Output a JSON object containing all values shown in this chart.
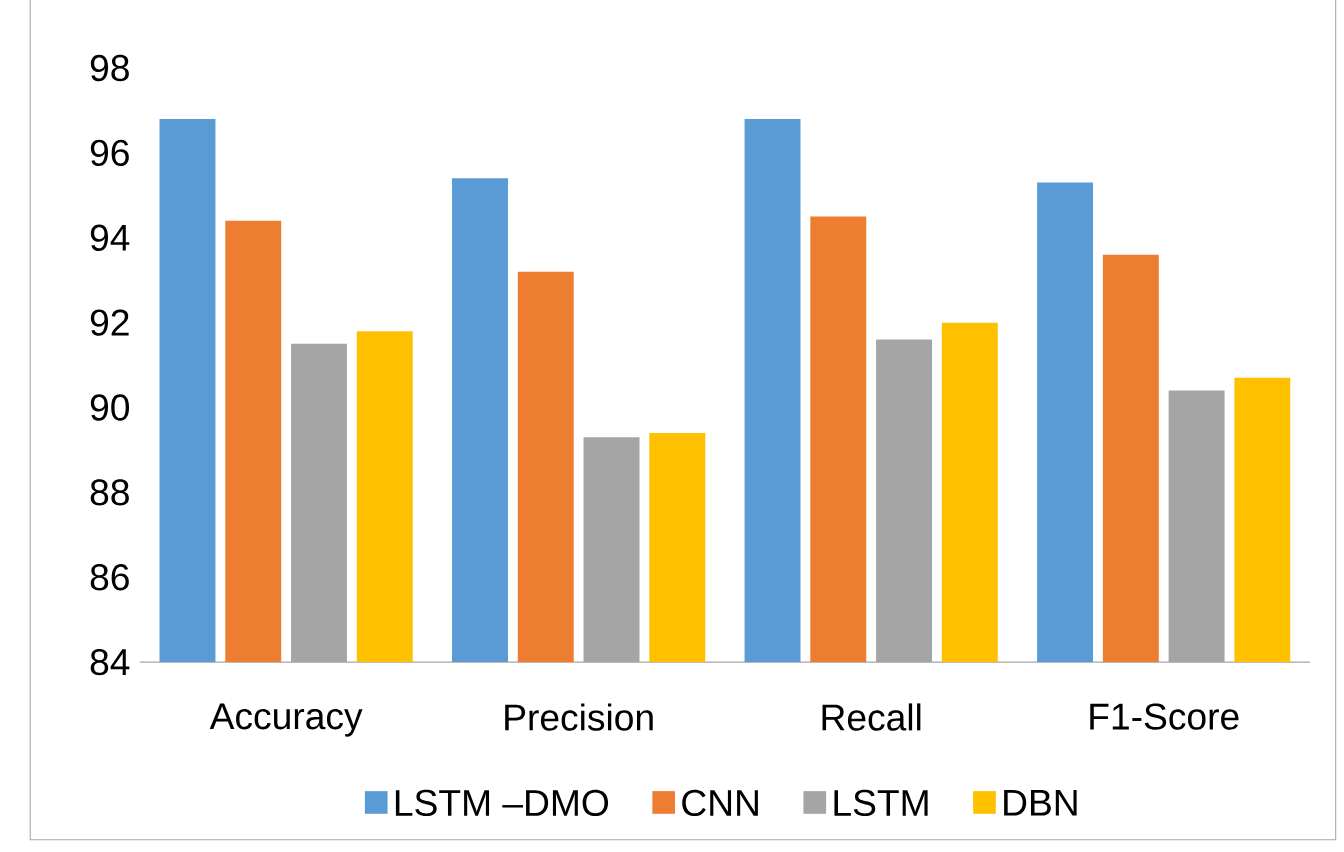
{
  "chart_data": {
    "type": "bar",
    "categories": [
      "Accuracy",
      "Precision",
      "Recall",
      "F1-Score"
    ],
    "series": [
      {
        "name": "LSTM –DMO",
        "color": "#5b9bd5",
        "values": [
          96.8,
          95.4,
          96.8,
          95.3
        ]
      },
      {
        "name": "CNN",
        "color": "#ed7d31",
        "values": [
          94.4,
          93.2,
          94.5,
          93.6
        ]
      },
      {
        "name": "LSTM",
        "color": "#a5a5a5",
        "values": [
          91.5,
          89.3,
          91.6,
          90.4
        ]
      },
      {
        "name": "DBN",
        "color": "#ffc000",
        "values": [
          91.8,
          89.4,
          92.0,
          90.7
        ]
      }
    ],
    "ylim": [
      84,
      98
    ],
    "yticks": [
      84,
      86,
      88,
      90,
      92,
      94,
      96,
      98
    ],
    "grid": false,
    "legend": "bottom"
  }
}
